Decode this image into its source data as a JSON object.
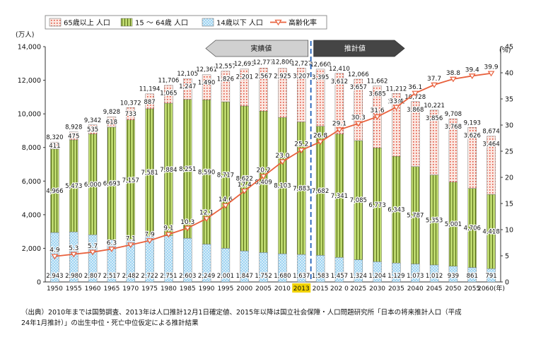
{
  "chart_data": {
    "type": "bar",
    "stacked": true,
    "categories": [
      "1950",
      "1955",
      "1960",
      "1965",
      "1970",
      "1975",
      "1980",
      "1985",
      "1990",
      "1995",
      "2000",
      "2005",
      "2010",
      "2013",
      "2015",
      "202 0",
      "2025",
      "2030",
      "2035",
      "2040",
      "2045",
      "2050",
      "2055",
      "2060(年)"
    ],
    "highlight_category": "2013",
    "y_unit_label": "(万人)",
    "y2_unit_label": "(%)",
    "ylim": [
      0,
      14000
    ],
    "yticks": [
      "0",
      "2,000",
      "4,000",
      "6,000",
      "8,000",
      "10,000",
      "12,000",
      "14,000"
    ],
    "y2lim": [
      0,
      45
    ],
    "y2ticks": [
      "0",
      "5",
      "10",
      "15",
      "20",
      "25",
      "30",
      "35",
      "40",
      "45"
    ],
    "legend_position": "top-left",
    "grid": false,
    "series": [
      {
        "name": "14歳以下 人口",
        "color": "#8ccbf0",
        "values": [
          2943,
          2980,
          2807,
          2517,
          2482,
          2722,
          2751,
          2603,
          2249,
          2001,
          1847,
          1752,
          1680,
          1637,
          1583,
          1457,
          1324,
          1204,
          1129,
          1073,
          1012,
          939,
          861,
          791
        ],
        "labels": [
          "2,943",
          "2,980",
          "2,807",
          "2,517",
          "2,482",
          "2,722",
          "2,751",
          "2,603",
          "2,249",
          "2,001",
          "1,847",
          "1,752",
          "1,680",
          "1,637",
          "1,583",
          "1,457",
          "1,324",
          "1,204",
          "1,129",
          "1,073",
          "1,012",
          "939",
          "861",
          "791"
        ]
      },
      {
        "name": "15 ～ 64歳 人口",
        "color": "#b5d264",
        "values": [
          4966,
          5473,
          6000,
          6693,
          7157,
          7581,
          7884,
          8251,
          8590,
          8717,
          8622,
          8409,
          8103,
          7883,
          7682,
          7341,
          7085,
          6773,
          6343,
          5787,
          5353,
          5001,
          4706,
          4418
        ],
        "labels": [
          "4,966",
          "5,473",
          "6,000",
          "6,693",
          "7,157",
          "7,581",
          "7,884",
          "8,251",
          "8,590",
          "8,717",
          "8,622",
          "8,409",
          "8,103",
          "7,883",
          "7,682",
          "7,341",
          "7,085",
          "6,773",
          "6,343",
          "5,787",
          "5,353",
          "5,001",
          "4,706",
          "4,418"
        ]
      },
      {
        "name": "65歳以上 人口",
        "color": "#f7d4c8",
        "values": [
          411,
          475,
          535,
          618,
          733,
          887,
          1065,
          1247,
          1490,
          1826,
          2201,
          2567,
          2925,
          3207,
          3395,
          3612,
          3657,
          3685,
          3741,
          3868,
          3856,
          3768,
          3626,
          3464
        ],
        "labels": [
          "411",
          "475",
          "535",
          "618",
          "733",
          "887",
          "1,065",
          "1,247",
          "1,490",
          "1,826",
          "2,201",
          "2,567",
          "2,925",
          "3,207",
          "3,395",
          "3,612",
          "3,657",
          "3,685",
          "3,741",
          "3,868",
          "3,856",
          "3,768",
          "3,626",
          "3,464"
        ]
      }
    ],
    "totals": {
      "values": [
        8320,
        8928,
        9342,
        9828,
        10372,
        11194,
        11706,
        12105,
        12361,
        12557,
        12693,
        12777,
        12806,
        12727,
        12660,
        12410,
        12066,
        11662,
        11212,
        10728,
        10221,
        9708,
        9193,
        8674
      ],
      "labels": [
        "8,320",
        "8,928",
        "9,342",
        "9,828",
        "10,372",
        "11,194",
        "11,706",
        "12,105",
        "12,361",
        "12,557",
        "12,693",
        "12,777",
        "12,806",
        "12,727",
        "12,660",
        "12,410",
        "12,066",
        "11,662",
        "11,212",
        "10,728",
        "10,221",
        "9,708",
        "9,193",
        "8,674"
      ]
    },
    "line": {
      "name": "高齢化率",
      "color": "#e8603c",
      "values": [
        4.9,
        5.3,
        5.7,
        6.3,
        7.1,
        7.9,
        9.1,
        10.3,
        12.1,
        14.6,
        17.4,
        20.2,
        23.0,
        25.2,
        26.8,
        29.1,
        30.3,
        31.6,
        33.4,
        36.1,
        37.7,
        38.8,
        39.4,
        39.9
      ],
      "labels": [
        "4.9",
        "5.3",
        "5.7",
        "6.3",
        "7.1",
        "7.9",
        "9.1",
        "10.3",
        "12.1",
        "14.6",
        "17.4",
        "20.2",
        "23.0",
        "25.2",
        "26.8",
        "29.1",
        "30.3",
        "31.6",
        "33.4",
        "36.1",
        "37.7",
        "38.8",
        "39.4",
        "39.9"
      ]
    },
    "annotations": {
      "actual": "実績値",
      "projected": "推計値"
    }
  },
  "legend": [
    "65歳以上 人口",
    "15 ～ 64歳 人口",
    "14歳以下 人口",
    "高齢化率"
  ],
  "source_text": [
    "（出典）2010年までは国勢調査、2013年は人口推計12月1日確定値、2015年以降は国立社会保障・人口問題研究所「日本の将来推計人口（平成",
    "24年1月推計）」の出生中位・死亡中位仮定による推計結果"
  ]
}
